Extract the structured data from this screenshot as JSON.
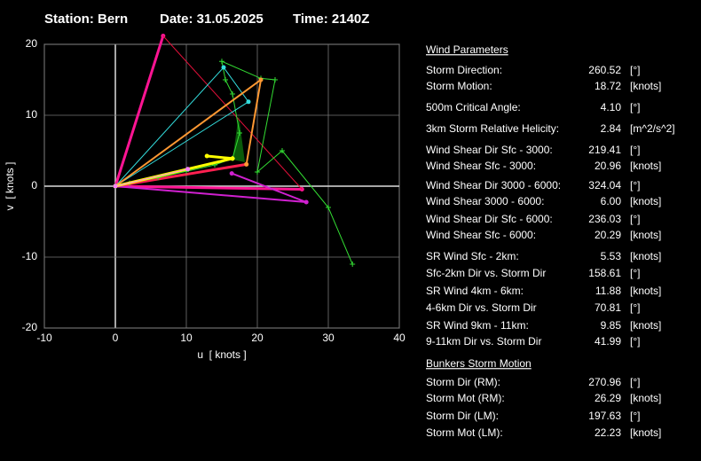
{
  "header": {
    "station": "Station: Bern",
    "date": "Date: 31.05.2025",
    "time": "Time: 2140Z"
  },
  "chart_data": {
    "type": "line",
    "xlabel": "u  [ knots ]",
    "ylabel": "v  [ knots ]",
    "xlim": [
      -10,
      40
    ],
    "ylim": [
      -20,
      20
    ],
    "xticks": [
      -10,
      0,
      10,
      20,
      30,
      40
    ],
    "yticks": [
      -20,
      -10,
      0,
      10,
      20
    ],
    "grid": true,
    "series": [
      {
        "color": "#ff1493",
        "marker": "dot",
        "x": [
          6.73,
          0,
          26.29
        ],
        "y": [
          21.19,
          0,
          -0.44
        ]
      },
      {
        "color": "#e0103a",
        "marker": "none",
        "x": [
          6.73,
          26.29
        ],
        "y": [
          21.19,
          -0.44
        ]
      },
      {
        "color": "#ff2050",
        "marker": "dot",
        "x": [
          0,
          18.46
        ],
        "y": [
          0,
          3.08
        ]
      },
      {
        "color": "#d020d0",
        "marker": "dot",
        "x": [
          0,
          26.9,
          16.4
        ],
        "y": [
          0,
          -2.25,
          1.8
        ]
      },
      {
        "color": "#33dd33",
        "marker": "cross",
        "x": [
          0,
          2,
          6,
          10,
          14,
          16.5,
          17.5,
          16.5,
          15.5,
          15,
          20.5,
          22.5,
          20,
          23.5,
          30,
          33.4
        ],
        "y": [
          0,
          0.4,
          1.2,
          2.1,
          3,
          3.9,
          7.5,
          13,
          15,
          17.6,
          15.2,
          15,
          2,
          5,
          -3,
          -11
        ]
      },
      {
        "color": "#33dddd",
        "marker": "dot",
        "x": [
          0,
          15.25,
          18.75,
          0
        ],
        "y": [
          0,
          16.75,
          11.9,
          0
        ]
      },
      {
        "color": "#ff9933",
        "marker": "dot",
        "x": [
          0,
          20.5,
          18.46
        ],
        "y": [
          0,
          15,
          3.08
        ]
      },
      {
        "color": "#ffff00",
        "marker": "dot",
        "x": [
          0,
          16.5,
          12.9
        ],
        "y": [
          0,
          3.9,
          4.25
        ]
      },
      {
        "color": "#ff80ff",
        "marker": "dot",
        "x": [
          0,
          10.2
        ],
        "y": [
          0,
          2.4
        ]
      }
    ]
  },
  "panel": {
    "sections": [
      {
        "title": "Wind Parameters",
        "rows": [
          {
            "label": "Storm Direction:",
            "value": "260.52",
            "unit": "[°]",
            "color": "#ff2020"
          },
          {
            "label": "Storm Motion:",
            "value": "18.72",
            "unit": "[knots]",
            "color": "#ff2020"
          },
          {
            "label": "500m Critical Angle:",
            "value": "4.10",
            "unit": "[°]",
            "color": "#ff80ff"
          },
          {
            "label": "3km Storm Relative Helicity:",
            "value": "2.84",
            "unit": "[m^2/s^2]",
            "color": "#33cc33"
          },
          {
            "label": "Wind Shear Dir Sfc - 3000:",
            "value": "219.41",
            "unit": "[°]",
            "color": "#40e0e0"
          },
          {
            "label": "Wind Shear Sfc - 3000:",
            "value": "20.96",
            "unit": "[knots]",
            "color": "#40e0e0"
          },
          {
            "label": "Wind Shear Dir 3000 - 6000:",
            "value": "324.04",
            "unit": "[°]",
            "color": "#40e0e0"
          },
          {
            "label": "Wind Shear 3000 - 6000:",
            "value": "6.00",
            "unit": "[knots]",
            "color": "#40e0e0"
          },
          {
            "label": "Wind Shear Dir Sfc - 6000:",
            "value": "236.03",
            "unit": "[°]",
            "color": "#40e0e0"
          },
          {
            "label": "Wind Shear Sfc - 6000:",
            "value": "20.29",
            "unit": "[knots]",
            "color": "#40e0e0"
          },
          {
            "label": "SR Wind Sfc - 2km:",
            "value": "5.53",
            "unit": "[knots]",
            "color": "#ffd700"
          },
          {
            "label": "Sfc-2km Dir vs. Storm Dir",
            "value": "158.61",
            "unit": "[°]",
            "color": "#ffff40"
          },
          {
            "label": "SR Wind 4km - 6km:",
            "value": "11.88",
            "unit": "[knots]",
            "color": "#ffa040"
          },
          {
            "label": "4-6km Dir vs. Storm Dir",
            "value": "70.81",
            "unit": "[°]",
            "color": "#ffa040"
          },
          {
            "label": "SR Wind 9km - 11km:",
            "value": "9.85",
            "unit": "[knots]",
            "color": "#dd33dd"
          },
          {
            "label": "9-11km Dir vs. Storm Dir",
            "value": "41.99",
            "unit": "[°]",
            "color": "#ff33ff"
          }
        ]
      },
      {
        "title": "Bunkers Storm Motion",
        "rows": [
          {
            "label": "Storm Dir (RM):",
            "value": "270.96",
            "unit": "[°]",
            "color": "#ff2080"
          },
          {
            "label": "Storm Mot (RM):",
            "value": "26.29",
            "unit": "[knots]",
            "color": "#ff2080"
          },
          {
            "label": "Storm Dir (LM):",
            "value": "197.63",
            "unit": "[°]",
            "color": "#ff2080"
          },
          {
            "label": "Storm Mot (LM):",
            "value": "22.23",
            "unit": "[knots]",
            "color": "#ff2080"
          }
        ]
      }
    ]
  }
}
